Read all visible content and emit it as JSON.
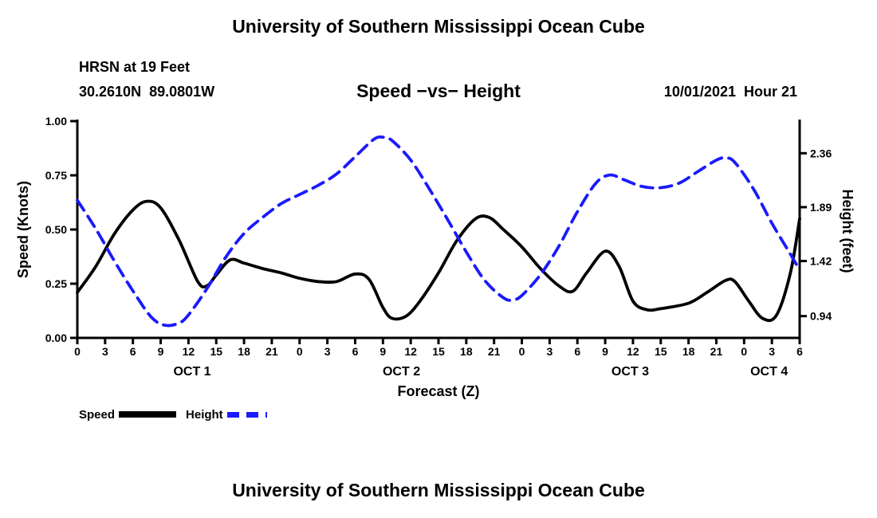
{
  "page": {
    "top_title": "University of Southern Mississippi Ocean Cube",
    "bottom_title": "University of Southern Mississippi Ocean Cube"
  },
  "header": {
    "station": "HRSN at 19 Feet",
    "coordinates": "30.2610N  89.0801W",
    "chart_title": "Speed −vs− Height",
    "datetime": "10/01/2021  Hour 21"
  },
  "legend": {
    "speed_label": "Speed",
    "height_label": "Height"
  },
  "colors": {
    "speed": "#000000",
    "height": "#1a1aff"
  },
  "chart_data": {
    "type": "line",
    "title": "Speed −vs− Height",
    "xlabel": "Forecast (Z)",
    "left_ylabel": "Speed (Knots)",
    "right_ylabel": "Height (feet)",
    "grid": false,
    "legend_position": "bottom-left",
    "x_axis": {
      "min": 0,
      "max": 78,
      "tick_hours": [
        0,
        3,
        6,
        9,
        12,
        15,
        18,
        21,
        24,
        27,
        30,
        33,
        36,
        39,
        42,
        45,
        48,
        51,
        54,
        57,
        60,
        63,
        66,
        69,
        72,
        75,
        78
      ],
      "tick_labels": [
        "0",
        "3",
        "6",
        "9",
        "12",
        "15",
        "18",
        "21",
        "0",
        "3",
        "6",
        "9",
        "12",
        "15",
        "18",
        "21",
        "0",
        "3",
        "6",
        "9",
        "12",
        "15",
        "18",
        "21",
        "0",
        "3",
        "6"
      ],
      "day_labels": [
        {
          "label": "OCT 1",
          "hour": 12.4
        },
        {
          "label": "OCT 2",
          "hour": 35.0
        },
        {
          "label": "OCT 3",
          "hour": 59.7
        },
        {
          "label": "OCT 4",
          "hour": 74.7
        }
      ]
    },
    "left_axis": {
      "min": 0.0,
      "max": 1.0,
      "ticks": [
        0.0,
        0.25,
        0.5,
        0.75,
        1.0
      ],
      "tick_labels": [
        "0.00",
        "0.25",
        "0.50",
        "0.75",
        "1.00"
      ]
    },
    "right_axis": {
      "min": 0.75,
      "max": 2.64,
      "ticks": [
        0.94,
        1.42,
        1.89,
        2.36
      ],
      "tick_labels": [
        "0.94",
        "1.42",
        "1.89",
        "2.36"
      ]
    },
    "series": [
      {
        "name": "Speed",
        "axis": "left",
        "color": "#000000",
        "style": "solid",
        "x": [
          0,
          2,
          4,
          6,
          7.5,
          9,
          11,
          13,
          14,
          15,
          16.5,
          18,
          20,
          22,
          24,
          26,
          28,
          30,
          31.5,
          33,
          34,
          35.5,
          37,
          39,
          41,
          43,
          44.5,
          46,
          48,
          50,
          52,
          53.5,
          55,
          57,
          58.5,
          60,
          61.5,
          63,
          66,
          68,
          70,
          71,
          72.5,
          74,
          75.5,
          77,
          78
        ],
        "values": [
          0.21,
          0.33,
          0.48,
          0.59,
          0.63,
          0.6,
          0.45,
          0.26,
          0.24,
          0.29,
          0.36,
          0.345,
          0.32,
          0.3,
          0.275,
          0.26,
          0.26,
          0.295,
          0.27,
          0.14,
          0.09,
          0.1,
          0.17,
          0.3,
          0.45,
          0.55,
          0.555,
          0.5,
          0.42,
          0.32,
          0.24,
          0.215,
          0.3,
          0.4,
          0.33,
          0.17,
          0.13,
          0.135,
          0.16,
          0.21,
          0.265,
          0.26,
          0.17,
          0.09,
          0.105,
          0.3,
          0.55
        ]
      },
      {
        "name": "Height",
        "axis": "right",
        "color": "#1a1aff",
        "style": "dashed",
        "x": [
          0,
          2,
          4,
          6,
          8,
          9.5,
          11,
          12,
          14,
          16,
          18,
          20,
          22,
          24,
          26,
          28,
          30,
          32,
          33,
          34,
          36,
          38,
          40,
          42,
          44,
          46,
          47,
          48,
          50,
          52,
          54,
          56,
          57.5,
          59,
          61,
          63,
          65,
          67,
          69,
          70,
          71,
          73,
          75,
          77,
          78
        ],
        "values": [
          1.95,
          1.7,
          1.42,
          1.16,
          0.93,
          0.86,
          0.88,
          0.95,
          1.18,
          1.45,
          1.66,
          1.8,
          1.92,
          2.0,
          2.08,
          2.18,
          2.33,
          2.48,
          2.5,
          2.47,
          2.3,
          2.05,
          1.78,
          1.5,
          1.25,
          1.1,
          1.08,
          1.12,
          1.3,
          1.55,
          1.85,
          2.1,
          2.17,
          2.13,
          2.07,
          2.06,
          2.1,
          2.2,
          2.3,
          2.32,
          2.28,
          2.05,
          1.75,
          1.48,
          1.34
        ]
      }
    ]
  }
}
